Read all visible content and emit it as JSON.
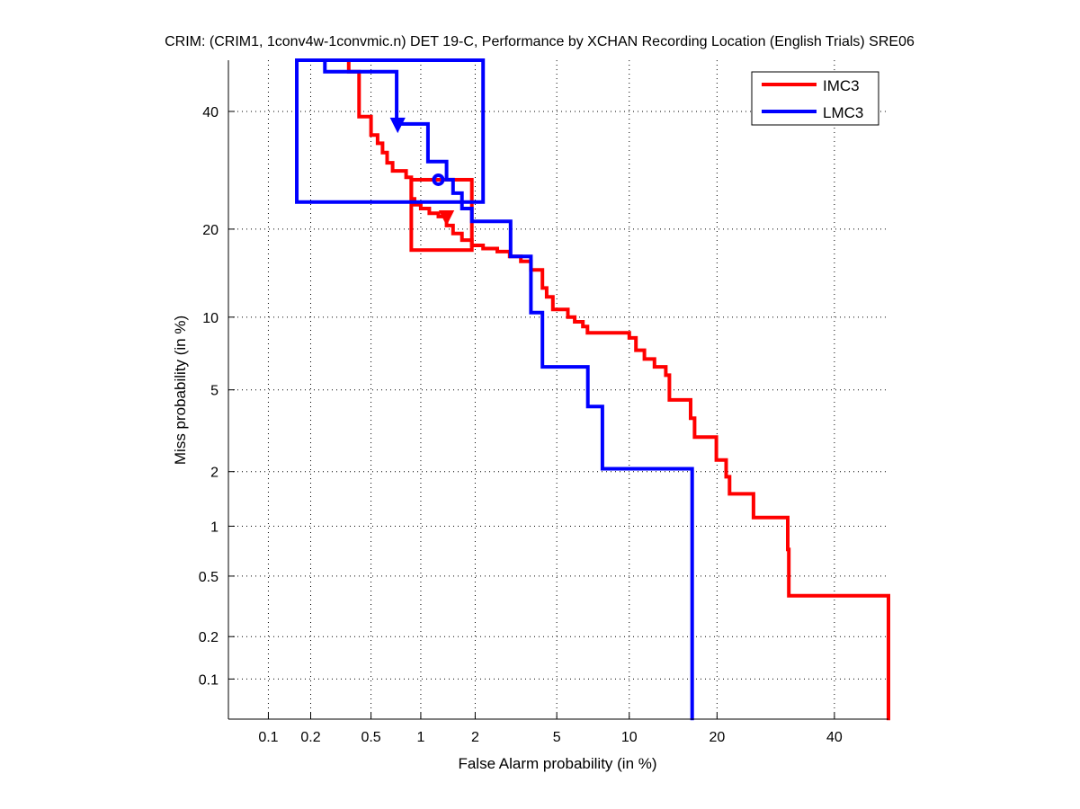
{
  "chart_data": {
    "type": "line",
    "scale": "probit",
    "title": "CRIM: (CRIM1, 1conv4w-1convmic.n) DET 19-C,  Performance by XCHAN Recording Location (English Trials) SRE06",
    "xlabel": "False Alarm probability (in %)",
    "ylabel": "Miss probability (in %)",
    "xlim": [
      0.05,
      50.7
    ],
    "ylim": [
      0.05,
      50.1
    ],
    "grid": true,
    "legend_position": "top-right",
    "x_ticks": [
      {
        "value": 0.1,
        "label": "0.1"
      },
      {
        "value": 0.2,
        "label": "0.2"
      },
      {
        "value": 0.5,
        "label": "0.5"
      },
      {
        "value": 1,
        "label": "1"
      },
      {
        "value": 2,
        "label": "2"
      },
      {
        "value": 5,
        "label": "5"
      },
      {
        "value": 10,
        "label": "10"
      },
      {
        "value": 20,
        "label": "20"
      },
      {
        "value": 40,
        "label": "40"
      }
    ],
    "y_ticks": [
      {
        "value": 0.1,
        "label": "0.1"
      },
      {
        "value": 0.2,
        "label": "0.2"
      },
      {
        "value": 0.5,
        "label": "0.5"
      },
      {
        "value": 1,
        "label": "1"
      },
      {
        "value": 2,
        "label": "2"
      },
      {
        "value": 5,
        "label": "5"
      },
      {
        "value": 10,
        "label": "10"
      },
      {
        "value": 20,
        "label": "20"
      },
      {
        "value": 40,
        "label": "40"
      }
    ],
    "series": [
      {
        "name": "IMC3",
        "color": "#ff0000",
        "points": [
          [
            0.36,
            50.1
          ],
          [
            0.36,
            47.8
          ],
          [
            0.42,
            47.8
          ],
          [
            0.42,
            39.0
          ],
          [
            0.5,
            39.0
          ],
          [
            0.5,
            35.5
          ],
          [
            0.55,
            35.5
          ],
          [
            0.55,
            34.0
          ],
          [
            0.59,
            34.0
          ],
          [
            0.59,
            32.3
          ],
          [
            0.63,
            32.3
          ],
          [
            0.63,
            30.5
          ],
          [
            0.68,
            30.5
          ],
          [
            0.68,
            29.1
          ],
          [
            0.82,
            29.1
          ],
          [
            0.82,
            28.0
          ],
          [
            0.88,
            28.0
          ],
          [
            0.88,
            24.5
          ],
          [
            0.92,
            24.5
          ],
          [
            0.92,
            23.6
          ],
          [
            1.0,
            23.6
          ],
          [
            1.0,
            23.0
          ],
          [
            1.12,
            23.0
          ],
          [
            1.12,
            22.3
          ],
          [
            1.26,
            22.3
          ],
          [
            1.26,
            21.8
          ],
          [
            1.4,
            21.8
          ],
          [
            1.4,
            20.5
          ],
          [
            1.52,
            20.5
          ],
          [
            1.52,
            19.4
          ],
          [
            1.7,
            19.4
          ],
          [
            1.7,
            18.5
          ],
          [
            1.92,
            18.5
          ],
          [
            1.92,
            17.8
          ],
          [
            2.2,
            17.8
          ],
          [
            2.2,
            17.4
          ],
          [
            2.6,
            17.4
          ],
          [
            2.6,
            17.0
          ],
          [
            3.0,
            17.0
          ],
          [
            3.0,
            16.4
          ],
          [
            3.4,
            16.4
          ],
          [
            3.4,
            15.8
          ],
          [
            3.8,
            15.8
          ],
          [
            3.8,
            14.8
          ],
          [
            4.3,
            14.8
          ],
          [
            4.3,
            12.8
          ],
          [
            4.5,
            12.8
          ],
          [
            4.5,
            11.9
          ],
          [
            4.8,
            11.9
          ],
          [
            4.8,
            10.7
          ],
          [
            5.6,
            10.7
          ],
          [
            5.6,
            10.0
          ],
          [
            6.0,
            10.0
          ],
          [
            6.0,
            9.6
          ],
          [
            6.5,
            9.6
          ],
          [
            6.5,
            9.2
          ],
          [
            6.8,
            9.2
          ],
          [
            6.8,
            8.7
          ],
          [
            10.0,
            8.7
          ],
          [
            10.0,
            8.3
          ],
          [
            10.6,
            8.3
          ],
          [
            10.6,
            7.4
          ],
          [
            11.4,
            7.4
          ],
          [
            11.4,
            6.8
          ],
          [
            12.4,
            6.8
          ],
          [
            12.4,
            6.3
          ],
          [
            13.6,
            6.3
          ],
          [
            13.6,
            5.8
          ],
          [
            14.0,
            5.8
          ],
          [
            14.0,
            4.5
          ],
          [
            16.5,
            4.5
          ],
          [
            16.5,
            3.7
          ],
          [
            17.0,
            3.7
          ],
          [
            17.0,
            3.0
          ],
          [
            19.9,
            3.0
          ],
          [
            19.9,
            2.3
          ],
          [
            21.3,
            2.3
          ],
          [
            21.3,
            1.88
          ],
          [
            21.8,
            1.88
          ],
          [
            21.8,
            1.52
          ],
          [
            25.5,
            1.52
          ],
          [
            25.5,
            1.12
          ],
          [
            31.3,
            1.12
          ],
          [
            31.3,
            0.73
          ],
          [
            31.5,
            0.73
          ],
          [
            31.5,
            0.375
          ],
          [
            50.7,
            0.375
          ],
          [
            50.7,
            0.049
          ]
        ],
        "box": {
          "x": [
            0.88,
            1.92
          ],
          "y": [
            17.2,
            27.6
          ]
        },
        "marker": {
          "shape": "triangle-down",
          "x": 1.4,
          "y": 21.8
        }
      },
      {
        "name": "LMC3",
        "color": "#0000ff",
        "points": [
          [
            0.25,
            50.1
          ],
          [
            0.25,
            47.8
          ],
          [
            0.72,
            47.8
          ],
          [
            0.72,
            37.6
          ],
          [
            1.1,
            37.6
          ],
          [
            1.1,
            30.7
          ],
          [
            1.4,
            30.7
          ],
          [
            1.4,
            27.6
          ],
          [
            1.52,
            27.6
          ],
          [
            1.52,
            25.4
          ],
          [
            1.7,
            25.4
          ],
          [
            1.7,
            23.0
          ],
          [
            1.92,
            23.0
          ],
          [
            1.92,
            21.1
          ],
          [
            3.03,
            21.1
          ],
          [
            3.03,
            16.4
          ],
          [
            3.8,
            16.4
          ],
          [
            3.8,
            10.4
          ],
          [
            4.3,
            10.4
          ],
          [
            4.3,
            6.3
          ],
          [
            6.82,
            6.3
          ],
          [
            6.82,
            4.2
          ],
          [
            7.84,
            4.2
          ],
          [
            7.84,
            2.07
          ],
          [
            16.7,
            2.07
          ],
          [
            16.7,
            0.049
          ]
        ],
        "box": {
          "x": [
            0.16,
            2.2
          ],
          "y": [
            24.0,
            50.1
          ]
        },
        "marker": {
          "shape": "triangle-down",
          "x": 0.73,
          "y": 37.6
        },
        "marker2": {
          "shape": "circle",
          "x": 1.26,
          "y": 27.6
        }
      }
    ]
  }
}
